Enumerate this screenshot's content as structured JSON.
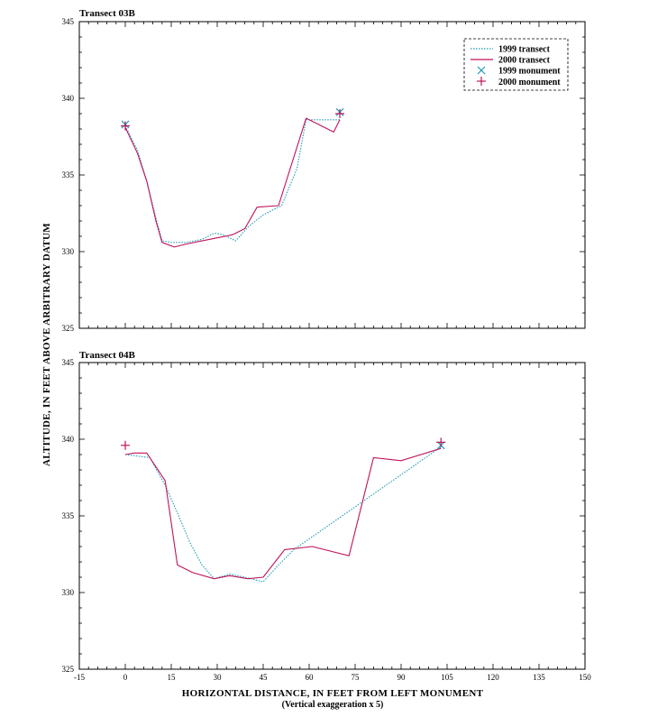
{
  "chart_data": [
    {
      "type": "line",
      "title": "Transect 03B",
      "xlim": [
        -15,
        150
      ],
      "ylim": [
        325,
        345
      ],
      "yticks": [
        325,
        330,
        335,
        340,
        345
      ],
      "ytick_labels": [
        "325",
        "330",
        "335",
        "340",
        "345"
      ],
      "grid": false,
      "legend": "top-right",
      "series": [
        {
          "name": "1999 transect",
          "style": "dotted",
          "color": "#1f9db5",
          "points": [
            [
              0,
              338.2
            ],
            [
              4,
              336.6
            ],
            [
              7,
              334.6
            ],
            [
              10,
              332.2
            ],
            [
              12,
              330.7
            ],
            [
              15,
              330.6
            ],
            [
              20,
              330.6
            ],
            [
              25,
              330.8
            ],
            [
              29,
              331.2
            ],
            [
              32,
              331.1
            ],
            [
              36,
              330.7
            ],
            [
              40,
              331.6
            ],
            [
              45,
              332.4
            ],
            [
              51,
              333.0
            ],
            [
              56,
              335.4
            ],
            [
              59,
              338.6
            ],
            [
              65,
              338.6
            ],
            [
              70,
              338.6
            ]
          ]
        },
        {
          "name": "2000 transect",
          "style": "solid",
          "color": "#c0135a",
          "points": [
            [
              0,
              338.1
            ],
            [
              4,
              336.4
            ],
            [
              7,
              334.6
            ],
            [
              10,
              332.0
            ],
            [
              12,
              330.6
            ],
            [
              16,
              330.3
            ],
            [
              20,
              330.5
            ],
            [
              25,
              330.7
            ],
            [
              30,
              330.9
            ],
            [
              35,
              331.1
            ],
            [
              39,
              331.5
            ],
            [
              43,
              332.9
            ],
            [
              50,
              333.0
            ],
            [
              59,
              338.7
            ],
            [
              68,
              337.8
            ],
            [
              70,
              338.6
            ]
          ]
        }
      ],
      "monuments": [
        {
          "name": "1999 monument",
          "marker": "x",
          "color": "#1f9db5",
          "points": [
            [
              0,
              338.3
            ],
            [
              70,
              339.1
            ]
          ]
        },
        {
          "name": "2000 monument",
          "marker": "+",
          "color": "#c0135a",
          "points": [
            [
              0,
              338.2
            ],
            [
              70,
              339.0
            ]
          ]
        }
      ]
    },
    {
      "type": "line",
      "title": "Transect 04B",
      "xlim": [
        -15,
        150
      ],
      "ylim": [
        325,
        345
      ],
      "yticks": [
        325,
        330,
        335,
        340,
        345
      ],
      "ytick_labels": [
        "325",
        "330",
        "335",
        "340",
        "345"
      ],
      "xticks": [
        -15,
        0,
        15,
        30,
        45,
        60,
        75,
        90,
        105,
        120,
        135,
        150
      ],
      "xtick_labels": [
        "-15",
        "0",
        "15",
        "30",
        "45",
        "60",
        "75",
        "90",
        "105",
        "120",
        "135",
        "150"
      ],
      "grid": false,
      "series": [
        {
          "name": "1999 transect",
          "style": "dotted",
          "color": "#1f9db5",
          "points": [
            [
              0,
              339.0
            ],
            [
              8,
              338.8
            ],
            [
              13,
              337.0
            ],
            [
              17,
              335.2
            ],
            [
              21,
              333.3
            ],
            [
              25,
              331.8
            ],
            [
              29,
              330.9
            ],
            [
              34,
              331.2
            ],
            [
              39,
              331.0
            ],
            [
              45,
              330.7
            ],
            [
              50,
              331.8
            ],
            [
              55,
              332.8
            ],
            [
              103,
              339.5
            ]
          ]
        },
        {
          "name": "2000 transect",
          "style": "solid",
          "color": "#c0135a",
          "points": [
            [
              0,
              339.0
            ],
            [
              3,
              339.1
            ],
            [
              7,
              339.1
            ],
            [
              13,
              337.3
            ],
            [
              17,
              331.8
            ],
            [
              22,
              331.3
            ],
            [
              29,
              330.9
            ],
            [
              34,
              331.1
            ],
            [
              40,
              330.9
            ],
            [
              45,
              331.0
            ],
            [
              52,
              332.8
            ],
            [
              61,
              333.0
            ],
            [
              73,
              332.4
            ],
            [
              81,
              338.8
            ],
            [
              90,
              338.6
            ],
            [
              103,
              339.4
            ]
          ]
        }
      ],
      "monuments": [
        {
          "name": "1999 monument",
          "marker": "x",
          "color": "#1f9db5",
          "points": [
            [
              103,
              339.6
            ]
          ]
        },
        {
          "name": "2000 monument",
          "marker": "+",
          "color": "#c0135a",
          "points": [
            [
              0,
              339.6
            ],
            [
              103,
              339.8
            ]
          ]
        }
      ]
    }
  ],
  "axes": {
    "ylabel": "ALTITUDE, IN FEET ABOVE ARBITRARY DATUM",
    "xlabel": "HORIZONTAL DISTANCE, IN FEET FROM LEFT MONUMENT",
    "xnote": "(Vertical exaggeration x 5)"
  },
  "legend": {
    "items": [
      {
        "label": "1999 transect",
        "symbol": "dotted-line",
        "color": "#1f9db5"
      },
      {
        "label": "2000 transect",
        "symbol": "solid-line",
        "color": "#c0135a"
      },
      {
        "label": "1999 monument",
        "symbol": "x-marker",
        "color": "#1f9db5"
      },
      {
        "label": "2000 monument",
        "symbol": "plus-marker",
        "color": "#c0135a"
      }
    ]
  }
}
